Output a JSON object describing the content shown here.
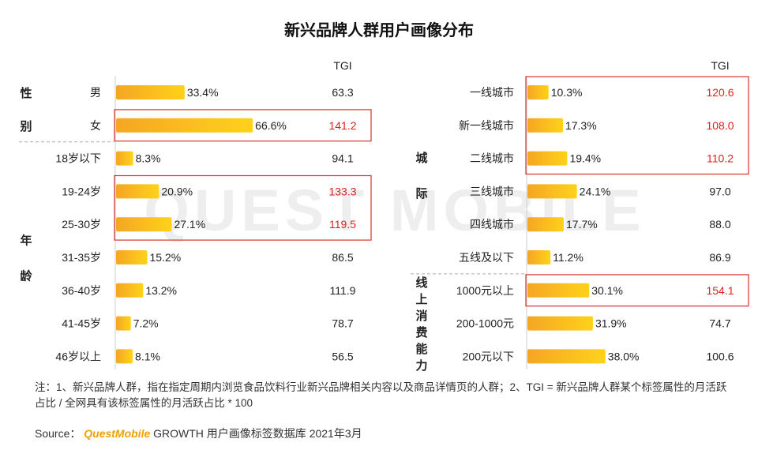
{
  "title": "新兴品牌人群用户画像分布",
  "watermark": "QUEST MOBILE",
  "tgi_header": "TGI",
  "colors": {
    "bar_start": "#f5a623",
    "bar_end": "#ffd21a",
    "highlight": "#e02020",
    "box": "#d9342b",
    "text": "#222222"
  },
  "chart_data": [
    {
      "type": "bar",
      "panel": "left",
      "groups": [
        {
          "label": "性别",
          "categories": [
            "男",
            "女"
          ]
        },
        {
          "label": "年龄",
          "categories": [
            "18岁以下",
            "19-24岁",
            "25-30岁",
            "31-35岁",
            "36-40岁",
            "41-45岁",
            "46岁以上"
          ]
        }
      ],
      "categories": [
        "男",
        "女",
        "18岁以下",
        "19-24岁",
        "25-30岁",
        "31-35岁",
        "36-40岁",
        "41-45岁",
        "46岁以上"
      ],
      "values": [
        33.4,
        66.6,
        8.3,
        20.9,
        27.1,
        15.2,
        13.2,
        7.2,
        8.1
      ],
      "value_labels": [
        "33.4%",
        "66.6%",
        "8.3%",
        "20.9%",
        "27.1%",
        "15.2%",
        "13.2%",
        "7.2%",
        "8.1%"
      ],
      "tgi": [
        "63.3",
        "141.2",
        "94.1",
        "133.3",
        "119.5",
        "86.5",
        "111.9",
        "78.7",
        "56.5"
      ],
      "highlighted": [
        1,
        3,
        4
      ]
    },
    {
      "type": "bar",
      "panel": "right",
      "groups": [
        {
          "label": "城际",
          "categories": [
            "一线城市",
            "新一线城市",
            "二线城市",
            "三线城市",
            "四线城市",
            "五线及以下"
          ]
        },
        {
          "label": "线上消费能力",
          "categories": [
            "1000元以上",
            "200-1000元",
            "200元以下"
          ]
        }
      ],
      "categories": [
        "一线城市",
        "新一线城市",
        "二线城市",
        "三线城市",
        "四线城市",
        "五线及以下",
        "1000元以上",
        "200-1000元",
        "200元以下"
      ],
      "values": [
        10.3,
        17.3,
        19.4,
        24.1,
        17.7,
        11.2,
        30.1,
        31.9,
        38.0
      ],
      "value_labels": [
        "10.3%",
        "17.3%",
        "19.4%",
        "24.1%",
        "17.7%",
        "11.2%",
        "30.1%",
        "31.9%",
        "38.0%"
      ],
      "tgi": [
        "120.6",
        "108.0",
        "110.2",
        "97.0",
        "88.0",
        "86.9",
        "154.1",
        "74.7",
        "100.6"
      ],
      "highlighted": [
        0,
        1,
        2,
        6
      ]
    }
  ],
  "note": "注：1、新兴品牌人群，指在指定周期内浏览食品饮料行业新兴品牌相关内容以及商品详情页的人群；2、TGI = 新兴品牌人群某个标签属性的月活跃占比 / 全网具有该标签属性的月活跃占比 * 100",
  "source": {
    "prefix": "Source：",
    "brand": "QuestMobile",
    "suffix": " GROWTH 用户画像标签数据库 2021年3月"
  }
}
